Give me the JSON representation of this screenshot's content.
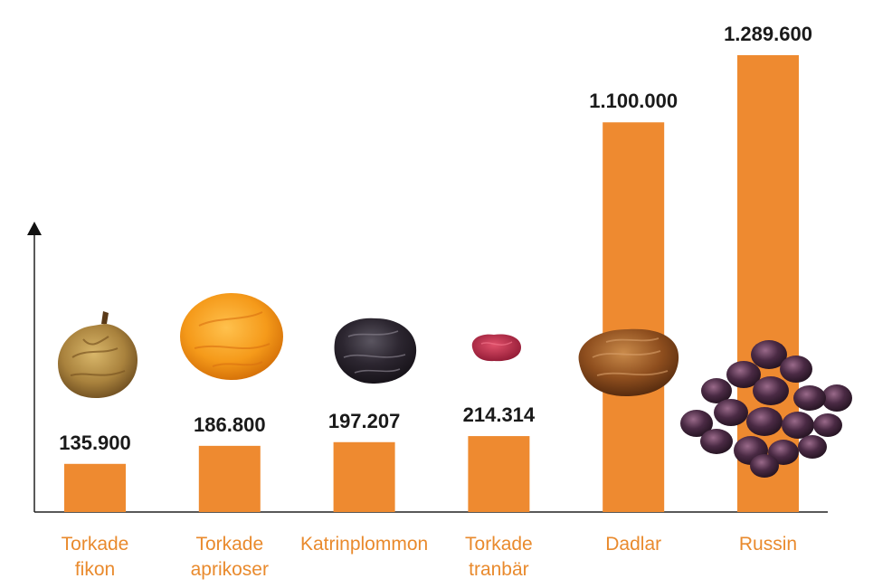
{
  "chart_data": {
    "type": "bar",
    "categories": [
      [
        "Torkade",
        "fikon"
      ],
      [
        "Torkade",
        "aprikoser"
      ],
      [
        "Katrinplommon"
      ],
      [
        "Torkade",
        "tranbär"
      ],
      [
        "Dadlar"
      ],
      [
        "Russin"
      ]
    ],
    "values": [
      135900,
      186800,
      197207,
      214314,
      1100000,
      1289600
    ],
    "value_labels": [
      "135.900",
      "186.800",
      "197.207",
      "214.314",
      "1.100.000",
      "1.289.600"
    ],
    "icons": [
      "dried-fig-icon",
      "dried-apricot-icon",
      "prune-icon",
      "dried-cranberry-icon",
      "date-icon",
      "raisins-icon"
    ],
    "title": "",
    "xlabel": "",
    "ylabel": "",
    "ylim": [
      0,
      1300000
    ],
    "grid": false,
    "legend": "none",
    "colors": {
      "bar": "#ee8a30",
      "category_label": "#e98a2d",
      "value_label": "#1a1a1a",
      "axis": "#222222"
    }
  }
}
